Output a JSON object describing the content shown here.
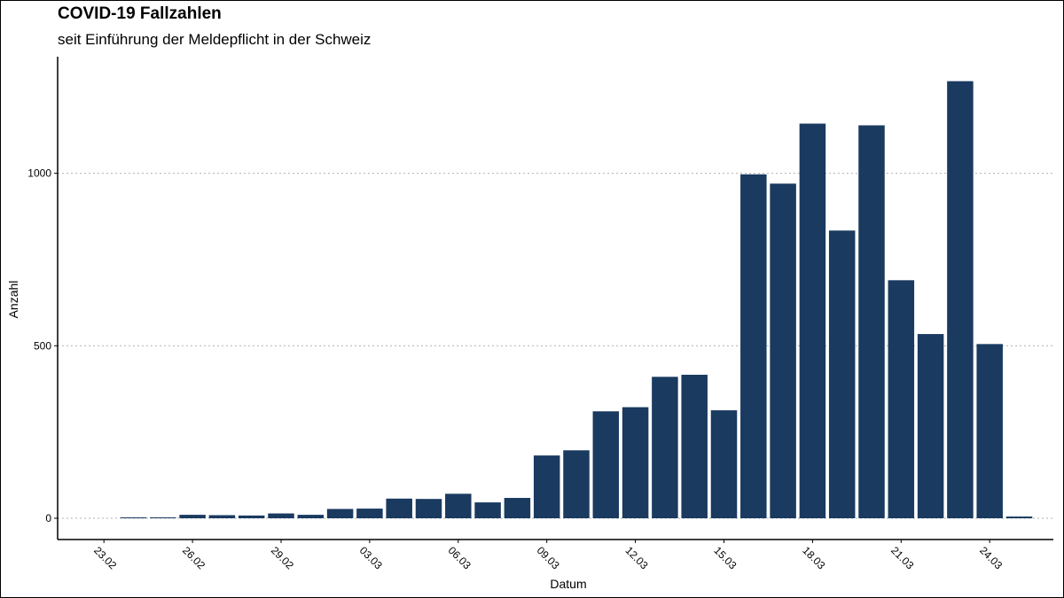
{
  "title": "COVID-19 Fallzahlen",
  "subtitle": "seit Einführung der Meldepflicht in der Schweiz",
  "chart_data": {
    "type": "bar",
    "title": "COVID-19 Fallzahlen",
    "subtitle": "seit Einführung der Meldepflicht in der Schweiz",
    "xlabel": "Datum",
    "ylabel": "Anzahl",
    "categories": [
      "24.02",
      "25.02",
      "26.02",
      "27.02",
      "28.02",
      "29.02",
      "01.03",
      "02.03",
      "03.03",
      "04.03",
      "05.03",
      "06.03",
      "07.03",
      "08.03",
      "09.03",
      "10.03",
      "11.03",
      "12.03",
      "13.03",
      "14.03",
      "15.03",
      "16.03",
      "17.03",
      "18.03",
      "19.03",
      "20.03",
      "21.03",
      "22.03",
      "23.03",
      "24.03",
      "25.03"
    ],
    "values": [
      1,
      1,
      10,
      9,
      8,
      14,
      10,
      27,
      28,
      57,
      56,
      71,
      46,
      59,
      182,
      197,
      310,
      322,
      410,
      416,
      313,
      997,
      970,
      1144,
      834,
      1139,
      690,
      534,
      1267,
      505,
      5
    ],
    "x_ticks": [
      "23.02",
      "26.02",
      "29.02",
      "03.03",
      "06.03",
      "09.03",
      "12.03",
      "15.03",
      "18.03",
      "21.03",
      "24.03"
    ],
    "y_ticks": [
      0,
      500,
      1000
    ],
    "ylim": [
      0,
      1300
    ],
    "grid": "horizontal dotted",
    "legend": "none",
    "bar_color": "#1a3a60"
  }
}
